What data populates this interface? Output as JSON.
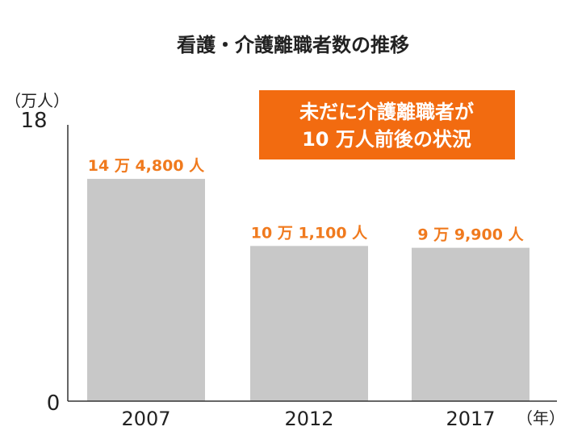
{
  "chart_data": {
    "type": "bar",
    "title": "看護・介護離職者数の推移",
    "ylabel": "（万人）",
    "xlabel": "（年）",
    "y_ticks": [
      "0",
      "18"
    ],
    "ylim": [
      0,
      18
    ],
    "categories": [
      "2007",
      "2012",
      "2017"
    ],
    "values": [
      14.48,
      10.11,
      9.99
    ],
    "data_labels": [
      "14 万 4,800 人",
      "10 万 1,100 人",
      "9 万 9,900 人"
    ],
    "grid": false,
    "legend": "none",
    "annotation": [
      "未だに介護離職者が",
      "10 万人前後の状況"
    ],
    "colors": {
      "bar": "#c8c8c8",
      "label": "#f07a1e",
      "callout_bg": "#f26b10",
      "axis": "#333333",
      "text": "#222222"
    }
  }
}
